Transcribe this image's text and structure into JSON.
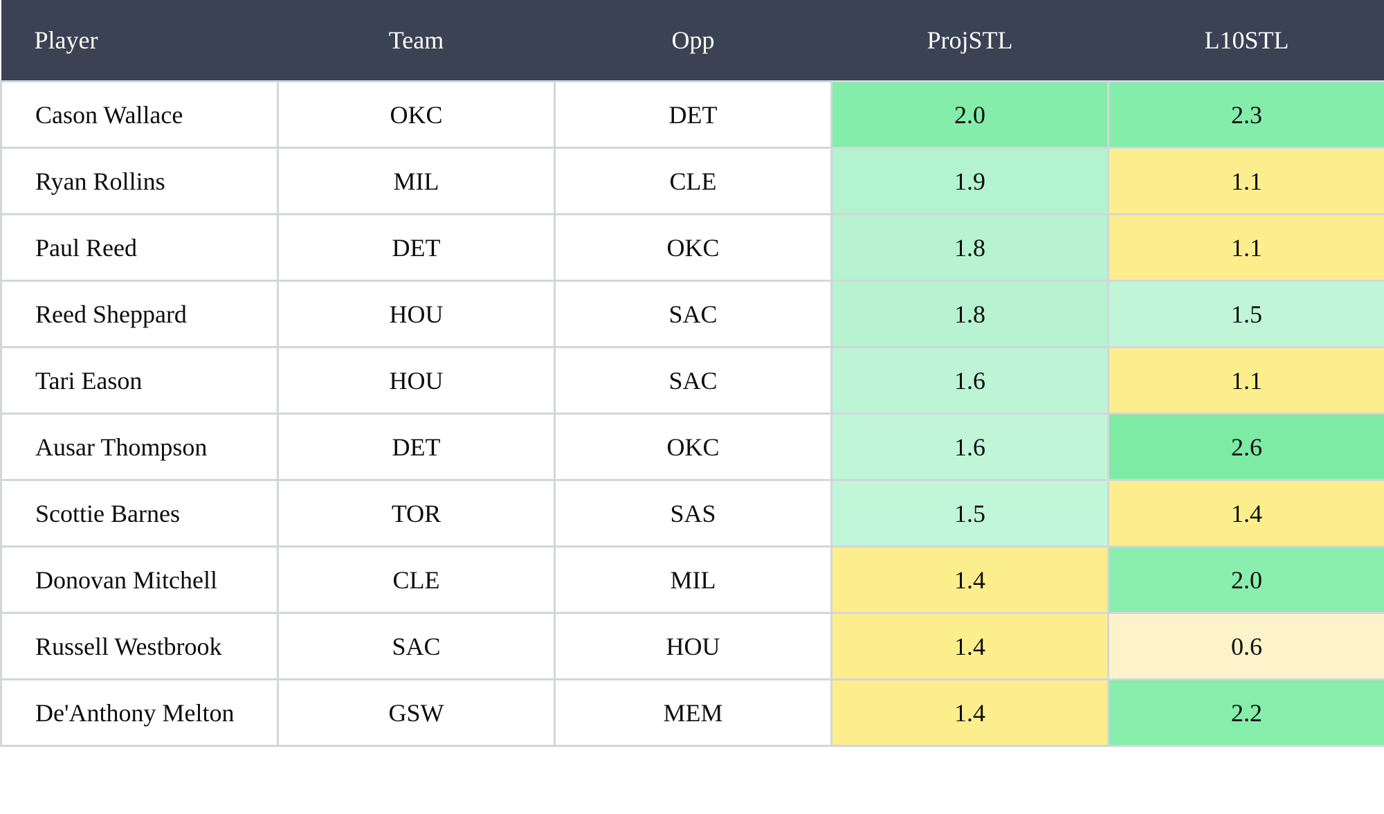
{
  "table": {
    "columns": [
      {
        "key": "player",
        "label": "Player"
      },
      {
        "key": "team",
        "label": "Team"
      },
      {
        "key": "opp",
        "label": "Opp"
      },
      {
        "key": "proj",
        "label": "ProjSTL"
      },
      {
        "key": "l10",
        "label": "L10STL"
      }
    ],
    "rows": [
      {
        "player": "Cason Wallace",
        "team": "OKC",
        "opp": "DET",
        "proj": "2.0",
        "l10": "2.3",
        "proj_color": "#84edaa",
        "l10_color": "#84edaa"
      },
      {
        "player": "Ryan Rollins",
        "team": "MIL",
        "opp": "CLE",
        "proj": "1.9",
        "l10": "1.1",
        "proj_color": "#b4f3cf",
        "l10_color": "#fdee8d"
      },
      {
        "player": "Paul Reed",
        "team": "DET",
        "opp": "OKC",
        "proj": "1.8",
        "l10": "1.1",
        "proj_color": "#b7f3d1",
        "l10_color": "#fdee8d"
      },
      {
        "player": "Reed Sheppard",
        "team": "HOU",
        "opp": "SAC",
        "proj": "1.8",
        "l10": "1.5",
        "proj_color": "#b7f3d1",
        "l10_color": "#c0f5d8"
      },
      {
        "player": "Tari Eason",
        "team": "HOU",
        "opp": "SAC",
        "proj": "1.6",
        "l10": "1.1",
        "proj_color": "#bcf4d5",
        "l10_color": "#fdee8d"
      },
      {
        "player": "Ausar Thompson",
        "team": "DET",
        "opp": "OKC",
        "proj": "1.6",
        "l10": "2.6",
        "proj_color": "#c0f5d7",
        "l10_color": "#7deba3"
      },
      {
        "player": "Scottie Barnes",
        "team": "TOR",
        "opp": "SAS",
        "proj": "1.5",
        "l10": "1.4",
        "proj_color": "#c2f6d9",
        "l10_color": "#fdee8d"
      },
      {
        "player": "Donovan Mitchell",
        "team": "CLE",
        "opp": "MIL",
        "proj": "1.4",
        "l10": "2.0",
        "proj_color": "#fdee8d",
        "l10_color": "#8aeeae"
      },
      {
        "player": "Russell Westbrook",
        "team": "SAC",
        "opp": "HOU",
        "proj": "1.4",
        "l10": "0.6",
        "proj_color": "#fdee8d",
        "l10_color": "#fdf3cb"
      },
      {
        "player": "De'Anthony Melton",
        "team": "GSW",
        "opp": "MEM",
        "proj": "1.4",
        "l10": "2.2",
        "proj_color": "#fdee8d",
        "l10_color": "#86edab"
      }
    ]
  },
  "colors": {
    "header_bg": "#3a4254",
    "header_text": "#ffffff",
    "grid_border": "#d3d6da",
    "cell_strong_green": "#84edaa",
    "cell_light_green": "#b9f4d3",
    "cell_yellow": "#fdee8d",
    "cell_pale_yellow": "#fdf3cb",
    "body_text": "#0d0d0d"
  },
  "chart_data": {
    "type": "table",
    "title": "",
    "columns": [
      "Player",
      "Team",
      "Opp",
      "ProjSTL",
      "L10STL"
    ],
    "players": [
      "Cason Wallace",
      "Ryan Rollins",
      "Paul Reed",
      "Reed Sheppard",
      "Tari Eason",
      "Ausar Thompson",
      "Scottie Barnes",
      "Donovan Mitchell",
      "Russell Westbrook",
      "De'Anthony Melton"
    ],
    "teams": [
      "OKC",
      "MIL",
      "DET",
      "HOU",
      "HOU",
      "DET",
      "TOR",
      "CLE",
      "SAC",
      "GSW"
    ],
    "opponents": [
      "DET",
      "CLE",
      "OKC",
      "SAC",
      "SAC",
      "OKC",
      "SAS",
      "MIL",
      "HOU",
      "MEM"
    ],
    "series": [
      {
        "name": "ProjSTL",
        "values": [
          2.0,
          1.9,
          1.8,
          1.8,
          1.6,
          1.6,
          1.5,
          1.4,
          1.4,
          1.4
        ]
      },
      {
        "name": "L10STL",
        "values": [
          2.3,
          1.1,
          1.1,
          1.5,
          1.1,
          2.6,
          1.4,
          2.0,
          0.6,
          2.2
        ]
      }
    ]
  }
}
